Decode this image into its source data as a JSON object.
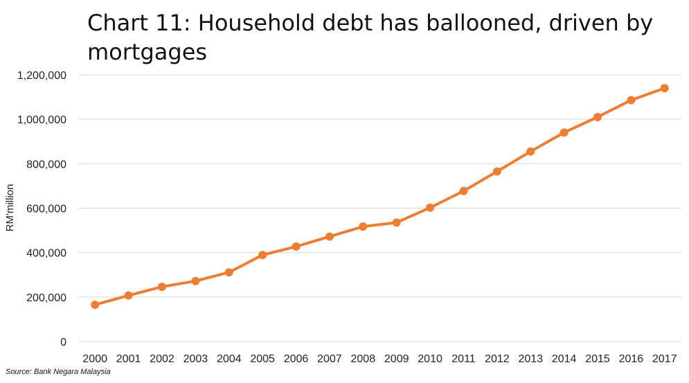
{
  "chart_data": {
    "type": "line",
    "title": "Chart 11: Household debt has ballooned, driven by mortgages",
    "xlabel": "",
    "ylabel": "RM'million",
    "source": "Source: Bank Negara Malaysia",
    "x": [
      "2000",
      "2001",
      "2002",
      "2003",
      "2004",
      "2005",
      "2006",
      "2007",
      "2008",
      "2009",
      "2010",
      "2011",
      "2012",
      "2013",
      "2014",
      "2015",
      "2016",
      "2017"
    ],
    "series": [
      {
        "values": [
          165000,
          207000,
          246000,
          272000,
          311000,
          389000,
          427000,
          472000,
          517000,
          535000,
          602000,
          677000,
          765000,
          855000,
          940000,
          1010000,
          1086000,
          1140000
        ]
      }
    ],
    "ylim": [
      0,
      1200000
    ],
    "yticks": [
      "0",
      "200,000",
      "400,000",
      "600,000",
      "800,000",
      "1,000,000",
      "1,200,000"
    ],
    "grid": true,
    "legend": "none",
    "line_color": "#ED7D31",
    "grid_color": "#D9D9D9"
  }
}
